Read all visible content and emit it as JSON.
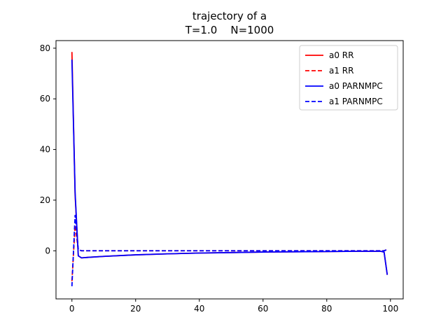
{
  "chart_data": {
    "type": "line",
    "title": "trajectory of a",
    "subtitle": "T=1.0    N=1000",
    "xlabel": "",
    "ylabel": "",
    "xlim": [
      -5,
      104
    ],
    "ylim": [
      -19,
      83
    ],
    "xticks": [
      0,
      20,
      40,
      60,
      80,
      100
    ],
    "yticks": [
      0,
      20,
      40,
      60,
      80
    ],
    "xtick_labels": [
      "0",
      "20",
      "40",
      "60",
      "80",
      "100"
    ],
    "ytick_labels": [
      "0",
      "20",
      "40",
      "60",
      "80"
    ],
    "grid": false,
    "legend": "top-right",
    "series": [
      {
        "name": "a0 RR",
        "color": "#ff0000",
        "style": "solid",
        "x": [
          0,
          1,
          2,
          3,
          5,
          10,
          20,
          30,
          40,
          50,
          60,
          70,
          80,
          90,
          95,
          97,
          98,
          99
        ],
        "y": [
          78.5,
          22,
          -2.0,
          -2.8,
          -2.6,
          -2.2,
          -1.6,
          -1.2,
          -0.9,
          -0.7,
          -0.5,
          -0.4,
          -0.3,
          -0.2,
          -0.2,
          -0.2,
          -0.5,
          -9.5
        ]
      },
      {
        "name": "a1 RR",
        "color": "#ff0000",
        "style": "dashed",
        "x": [
          0,
          1,
          2,
          3,
          10,
          20,
          40,
          60,
          80,
          95,
          97,
          98,
          99
        ],
        "y": [
          -12,
          10,
          0.5,
          0,
          0,
          0,
          0,
          0,
          0,
          0,
          0,
          0,
          0.5
        ]
      },
      {
        "name": "a0 PARNMPC",
        "color": "#0000ff",
        "style": "solid",
        "x": [
          0,
          1,
          2,
          3,
          5,
          10,
          20,
          30,
          40,
          50,
          60,
          70,
          80,
          90,
          95,
          97,
          98,
          99
        ],
        "y": [
          75.5,
          23,
          -2.0,
          -2.8,
          -2.6,
          -2.2,
          -1.6,
          -1.2,
          -0.9,
          -0.7,
          -0.5,
          -0.4,
          -0.3,
          -0.2,
          -0.2,
          -0.2,
          -0.5,
          -9.5
        ]
      },
      {
        "name": "a1 PARNMPC",
        "color": "#0000ff",
        "style": "dashed",
        "x": [
          0,
          1,
          2,
          3,
          10,
          20,
          40,
          60,
          80,
          95,
          97,
          98,
          99
        ],
        "y": [
          -14,
          14,
          0.5,
          0,
          0,
          0,
          0,
          0,
          0,
          0,
          0,
          0,
          0.5
        ]
      }
    ]
  }
}
